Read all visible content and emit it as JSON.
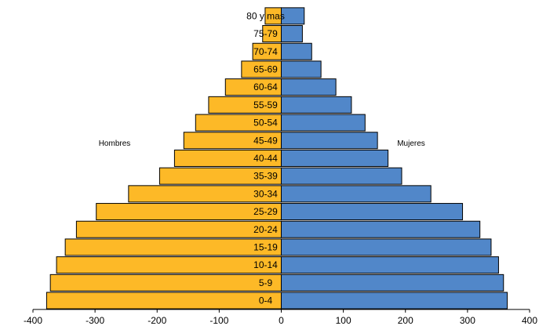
{
  "chart_data": {
    "type": "bar",
    "orientation": "horizontal",
    "categories": [
      "0-4",
      "5-9",
      "10-14",
      "15-19",
      "20-24",
      "25-29",
      "30-34",
      "35-39",
      "40-44",
      "45-49",
      "50-54",
      "55-59",
      "60-64",
      "65-69",
      "70-74",
      "75-79",
      "80 y mas"
    ],
    "series": [
      {
        "name": "Hombres",
        "color": "#FDB927",
        "values": [
          -378,
          -372,
          -362,
          -348,
          -330,
          -298,
          -246,
          -196,
          -172,
          -157,
          -138,
          -117,
          -90,
          -64,
          -46,
          -30,
          -26
        ]
      },
      {
        "name": "Mujeres",
        "color": "#5187C9",
        "values": [
          364,
          358,
          350,
          338,
          320,
          292,
          241,
          194,
          172,
          155,
          135,
          113,
          88,
          64,
          49,
          34,
          37
        ]
      }
    ],
    "xlim": [
      -400,
      400
    ],
    "xticks": [
      -400,
      -300,
      -200,
      -100,
      0,
      100,
      200,
      300,
      400
    ],
    "title": "",
    "xlabel": "",
    "ylabel": "",
    "grid": false,
    "legend": "none"
  }
}
